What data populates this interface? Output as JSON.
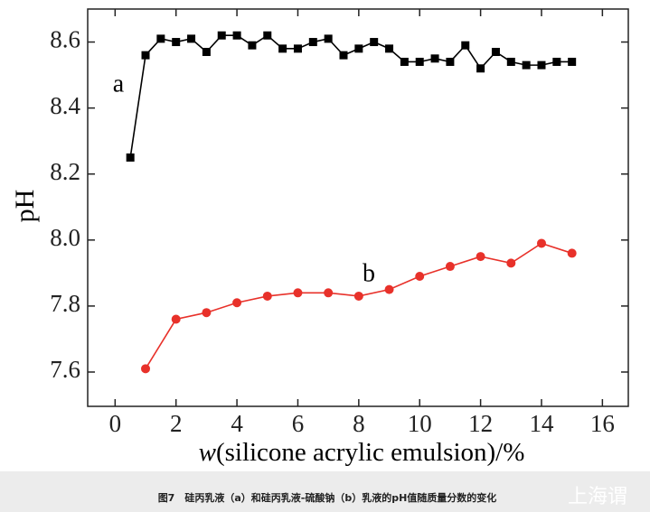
{
  "chart_data": {
    "type": "line",
    "ylabel": "pH",
    "xlabel_var": "w",
    "xlabel": "(silicone acrylic emulsion)/%",
    "annotations": [
      "a",
      "b"
    ],
    "series": [
      {
        "name": "a",
        "color": "#000000",
        "marker": "square",
        "x": [
          0.5,
          1,
          1.5,
          2,
          2.5,
          3,
          3.5,
          4,
          4.5,
          5,
          5.5,
          6,
          6.5,
          7,
          7.5,
          8,
          8.5,
          9,
          9.5,
          10,
          10.5,
          11,
          11.5,
          12,
          12.5,
          13,
          13.5,
          14,
          14.5,
          15
        ],
        "values": [
          8.25,
          8.56,
          8.61,
          8.6,
          8.61,
          8.57,
          8.62,
          8.62,
          8.59,
          8.62,
          8.58,
          8.58,
          8.6,
          8.61,
          8.56,
          8.58,
          8.6,
          8.58,
          8.54,
          8.54,
          8.55,
          8.54,
          8.59,
          8.52,
          8.57,
          8.54,
          8.53,
          8.53,
          8.54,
          8.54
        ]
      },
      {
        "name": "b",
        "color": "#e8312a",
        "marker": "circle",
        "x": [
          1,
          2,
          3,
          4,
          5,
          6,
          7,
          8,
          9,
          10,
          11,
          12,
          13,
          14,
          15
        ],
        "values": [
          7.61,
          7.76,
          7.78,
          7.81,
          7.83,
          7.84,
          7.84,
          7.83,
          7.85,
          7.89,
          7.92,
          7.95,
          7.93,
          7.99,
          7.96
        ]
      }
    ],
    "xlim": [
      -0.9,
      16.85
    ],
    "xticks": [
      0,
      2,
      4,
      6,
      8,
      10,
      12,
      14,
      16
    ],
    "ylim": [
      7.496,
      8.7
    ],
    "yticks": [
      7.6,
      7.8,
      {
        "value": 8,
        "label": "8.0"
      },
      8.2,
      8.4,
      8.6
    ],
    "grid": false
  },
  "caption": "图7　硅丙乳液（a）和硅丙乳液-硫酸钠（b）乳液的pH值随质量分数的变化",
  "watermark": "上海谓"
}
